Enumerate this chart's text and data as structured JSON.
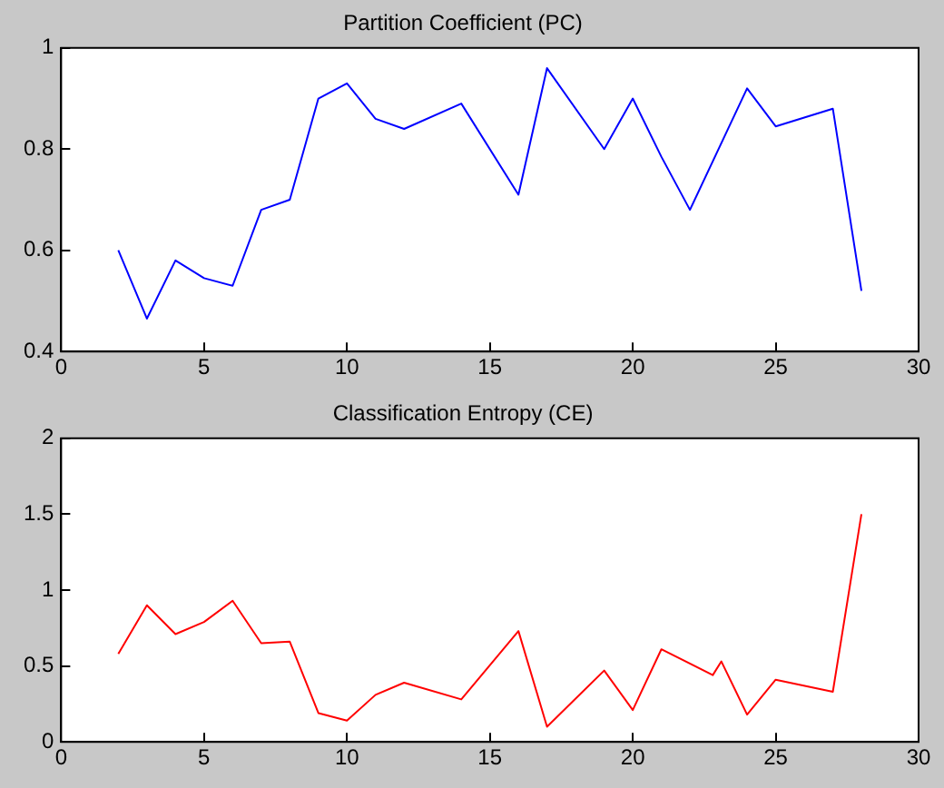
{
  "chart_data": [
    {
      "type": "line",
      "title": "Partition Coefficient (PC)",
      "x": [
        2,
        3,
        4,
        5,
        6,
        7,
        8,
        9,
        10,
        11,
        12,
        14,
        16,
        17,
        19,
        20,
        21,
        22,
        24,
        25,
        27,
        28
      ],
      "series": [
        {
          "color": "#0000ff",
          "values": [
            0.6,
            0.465,
            0.58,
            0.545,
            0.53,
            0.68,
            0.7,
            0.9,
            0.93,
            0.86,
            0.84,
            0.89,
            0.71,
            0.96,
            0.8,
            0.9,
            0.785,
            0.68,
            0.92,
            0.845,
            0.88,
            0.52
          ]
        }
      ],
      "xlim": [
        0,
        30
      ],
      "xticks": [
        0,
        5,
        10,
        15,
        20,
        25,
        30
      ],
      "ylim": [
        0.4,
        1
      ],
      "yticks": [
        0.4,
        0.6,
        0.8,
        1
      ],
      "grid": false,
      "legend": false,
      "marker": "none",
      "line_style": "solid"
    },
    {
      "type": "line",
      "title": "Classification Entropy (CE)",
      "x": [
        2,
        3,
        4,
        5,
        6,
        7,
        8,
        9,
        10,
        11,
        12,
        14,
        16,
        17,
        19,
        20,
        21,
        22.8,
        23.1,
        24,
        25,
        27,
        28
      ],
      "series": [
        {
          "color": "#ff0000",
          "values": [
            0.58,
            0.9,
            0.71,
            0.79,
            0.93,
            0.65,
            0.66,
            0.19,
            0.14,
            0.31,
            0.39,
            0.28,
            0.73,
            0.1,
            0.47,
            0.21,
            0.61,
            0.44,
            0.53,
            0.18,
            0.41,
            0.33,
            1.5
          ]
        }
      ],
      "xlim": [
        0,
        30
      ],
      "xticks": [
        0,
        5,
        10,
        15,
        20,
        25,
        30
      ],
      "ylim": [
        0,
        2
      ],
      "yticks": [
        0,
        0.5,
        1,
        1.5,
        2
      ],
      "grid": false,
      "legend": false,
      "marker": "none",
      "line_style": "solid"
    }
  ]
}
